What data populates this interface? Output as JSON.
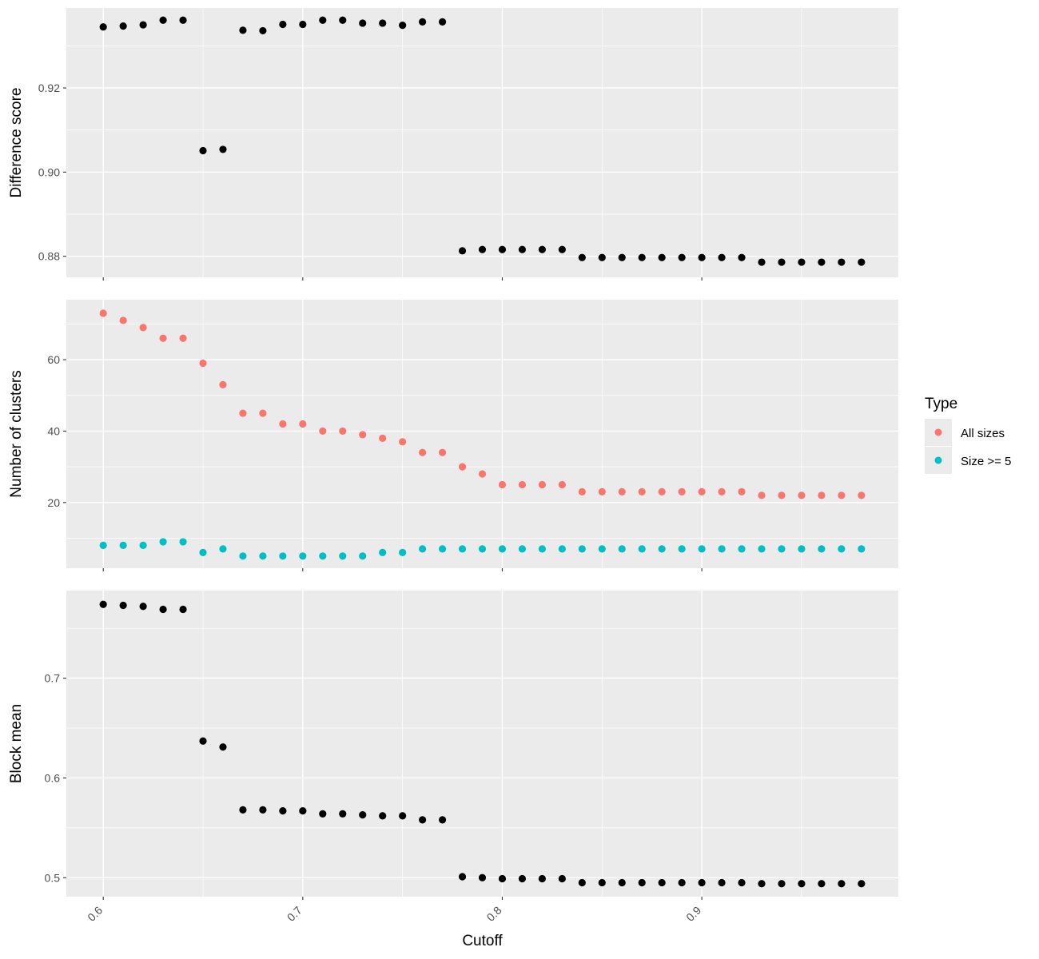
{
  "chart_data": [
    {
      "type": "scatter",
      "ylabel": "Difference score",
      "ylim": [
        0.875,
        0.939
      ],
      "yticks": [
        0.88,
        0.9,
        0.92
      ],
      "ytick_labels": [
        "0.88",
        "0.90",
        "0.92"
      ],
      "grid": true,
      "series": [
        {
          "color": "#000000",
          "x": [
            0.6,
            0.61,
            0.62,
            0.63,
            0.64,
            0.65,
            0.66,
            0.67,
            0.68,
            0.69,
            0.7,
            0.71,
            0.72,
            0.73,
            0.74,
            0.75,
            0.76,
            0.77,
            0.78,
            0.79,
            0.8,
            0.81,
            0.82,
            0.83,
            0.84,
            0.85,
            0.86,
            0.87,
            0.88,
            0.89,
            0.9,
            0.91,
            0.92,
            0.93,
            0.94,
            0.95,
            0.96,
            0.97,
            0.98
          ],
          "y": [
            0.9345,
            0.9347,
            0.935,
            0.9361,
            0.9361,
            0.9051,
            0.9054,
            0.9337,
            0.9336,
            0.9351,
            0.9351,
            0.9361,
            0.9361,
            0.9354,
            0.9354,
            0.9349,
            0.9357,
            0.9357,
            0.8813,
            0.8816,
            0.8816,
            0.8816,
            0.8816,
            0.8816,
            0.8797,
            0.8797,
            0.8797,
            0.8797,
            0.8797,
            0.8797,
            0.8797,
            0.8797,
            0.8797,
            0.8786,
            0.8786,
            0.8786,
            0.8786,
            0.8786,
            0.8786
          ]
        }
      ]
    },
    {
      "type": "scatter",
      "ylabel": "Number of clusters",
      "ylim": [
        1.6,
        76.8
      ],
      "yticks": [
        20,
        40,
        60
      ],
      "ytick_labels": [
        "20",
        "40",
        "60"
      ],
      "grid": true,
      "legend": {
        "title": "Type",
        "position": "right",
        "entries": [
          "All sizes",
          "Size >= 5"
        ]
      },
      "series": [
        {
          "name": "All sizes",
          "color": "#F8766D",
          "x": [
            0.6,
            0.61,
            0.62,
            0.63,
            0.64,
            0.65,
            0.66,
            0.67,
            0.68,
            0.69,
            0.7,
            0.71,
            0.72,
            0.73,
            0.74,
            0.75,
            0.76,
            0.77,
            0.78,
            0.79,
            0.8,
            0.81,
            0.82,
            0.83,
            0.84,
            0.85,
            0.86,
            0.87,
            0.88,
            0.89,
            0.9,
            0.91,
            0.92,
            0.93,
            0.94,
            0.95,
            0.96,
            0.97,
            0.98
          ],
          "y": [
            73,
            71,
            69,
            66,
            66,
            59,
            53,
            45,
            45,
            42,
            42,
            40,
            40,
            39,
            38,
            37,
            34,
            34,
            30,
            28,
            25,
            25,
            25,
            25,
            23,
            23,
            23,
            23,
            23,
            23,
            23,
            23,
            23,
            22,
            22,
            22,
            22,
            22,
            22
          ]
        },
        {
          "name": "Size >= 5",
          "color": "#00BFC4",
          "x": [
            0.6,
            0.61,
            0.62,
            0.63,
            0.64,
            0.65,
            0.66,
            0.67,
            0.68,
            0.69,
            0.7,
            0.71,
            0.72,
            0.73,
            0.74,
            0.75,
            0.76,
            0.77,
            0.78,
            0.79,
            0.8,
            0.81,
            0.82,
            0.83,
            0.84,
            0.85,
            0.86,
            0.87,
            0.88,
            0.89,
            0.9,
            0.91,
            0.92,
            0.93,
            0.94,
            0.95,
            0.96,
            0.97,
            0.98
          ],
          "y": [
            8,
            8,
            8,
            9,
            9,
            6,
            7,
            5,
            5,
            5,
            5,
            5,
            5,
            5,
            6,
            6,
            7,
            7,
            7,
            7,
            7,
            7,
            7,
            7,
            7,
            7,
            7,
            7,
            7,
            7,
            7,
            7,
            7,
            7,
            7,
            7,
            7,
            7,
            7
          ]
        }
      ]
    },
    {
      "type": "scatter",
      "ylabel": "Block mean",
      "xlabel": "Cutoff",
      "ylim": [
        0.481,
        0.7878
      ],
      "yticks": [
        0.5,
        0.6,
        0.7
      ],
      "ytick_labels": [
        "0.5",
        "0.6",
        "0.7"
      ],
      "grid": true,
      "series": [
        {
          "color": "#000000",
          "x": [
            0.6,
            0.61,
            0.62,
            0.63,
            0.64,
            0.65,
            0.66,
            0.67,
            0.68,
            0.69,
            0.7,
            0.71,
            0.72,
            0.73,
            0.74,
            0.75,
            0.76,
            0.77,
            0.78,
            0.79,
            0.8,
            0.81,
            0.82,
            0.83,
            0.84,
            0.85,
            0.86,
            0.87,
            0.88,
            0.89,
            0.9,
            0.91,
            0.92,
            0.93,
            0.94,
            0.95,
            0.96,
            0.97,
            0.98
          ],
          "y": [
            0.774,
            0.773,
            0.772,
            0.769,
            0.769,
            0.637,
            0.631,
            0.568,
            0.568,
            0.567,
            0.567,
            0.564,
            0.564,
            0.563,
            0.562,
            0.562,
            0.558,
            0.558,
            0.501,
            0.5,
            0.499,
            0.499,
            0.499,
            0.499,
            0.495,
            0.495,
            0.495,
            0.495,
            0.495,
            0.495,
            0.495,
            0.495,
            0.495,
            0.494,
            0.494,
            0.494,
            0.494,
            0.494,
            0.494
          ]
        }
      ]
    }
  ],
  "x_axis": {
    "xlim": [
      0.5815,
      0.9985
    ],
    "ticks": [
      0.6,
      0.7,
      0.8,
      0.9
    ],
    "tick_labels": [
      "0.6",
      "0.7",
      "0.8",
      "0.9"
    ],
    "label": "Cutoff"
  }
}
